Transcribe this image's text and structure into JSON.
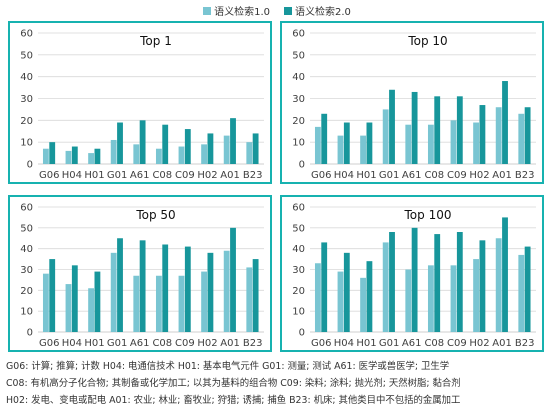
{
  "legend": {
    "series1": "语义检索1.0",
    "series2": "语义检索2.0"
  },
  "colors": {
    "series1": "#79c5d2",
    "series2": "#17969b",
    "panel_border": "#17b2b0",
    "grid": "#d9d9d9",
    "axis_text": "#404040"
  },
  "chart_data": [
    {
      "type": "bar",
      "title": "Top 1",
      "categories": [
        "G06",
        "H04",
        "H01",
        "G01",
        "A61",
        "C08",
        "C09",
        "H02",
        "A01",
        "B23"
      ],
      "ylim": [
        0,
        60
      ],
      "yticks": [
        0,
        10,
        20,
        30,
        40,
        50,
        60
      ],
      "grid": true,
      "series": [
        {
          "name": "语义检索1.0",
          "values": [
            7,
            6,
            5,
            11,
            9,
            7,
            8,
            9,
            13,
            10
          ]
        },
        {
          "name": "语义检索2.0",
          "values": [
            10,
            8,
            7,
            19,
            20,
            18,
            16,
            14,
            21,
            14
          ]
        }
      ]
    },
    {
      "type": "bar",
      "title": "Top 10",
      "categories": [
        "G06",
        "H04",
        "H01",
        "G01",
        "A61",
        "C08",
        "C09",
        "H02",
        "A01",
        "B23"
      ],
      "ylim": [
        0,
        60
      ],
      "yticks": [
        0,
        10,
        20,
        30,
        40,
        50,
        60
      ],
      "grid": true,
      "series": [
        {
          "name": "语义检索1.0",
          "values": [
            17,
            13,
            13,
            25,
            18,
            18,
            20,
            19,
            26,
            23
          ]
        },
        {
          "name": "语义检索2.0",
          "values": [
            23,
            19,
            19,
            34,
            33,
            31,
            31,
            27,
            38,
            26
          ]
        }
      ]
    },
    {
      "type": "bar",
      "title": "Top 50",
      "categories": [
        "G06",
        "H04",
        "H01",
        "G01",
        "A61",
        "C08",
        "C09",
        "H02",
        "A01",
        "B23"
      ],
      "ylim": [
        0,
        60
      ],
      "yticks": [
        0,
        10,
        20,
        30,
        40,
        50,
        60
      ],
      "grid": true,
      "series": [
        {
          "name": "语义检索1.0",
          "values": [
            28,
            23,
            21,
            38,
            27,
            27,
            27,
            29,
            39,
            31
          ]
        },
        {
          "name": "语义检索2.0",
          "values": [
            35,
            32,
            29,
            45,
            44,
            42,
            41,
            38,
            50,
            35
          ]
        }
      ]
    },
    {
      "type": "bar",
      "title": "Top 100",
      "categories": [
        "G06",
        "H04",
        "H01",
        "G01",
        "A61",
        "C08",
        "C09",
        "H02",
        "A01",
        "B23"
      ],
      "ylim": [
        0,
        60
      ],
      "yticks": [
        0,
        10,
        20,
        30,
        40,
        50,
        60
      ],
      "grid": true,
      "series": [
        {
          "name": "语义检索1.0",
          "values": [
            33,
            29,
            26,
            43,
            30,
            32,
            32,
            35,
            45,
            37
          ]
        },
        {
          "name": "语义检索2.0",
          "values": [
            43,
            38,
            34,
            48,
            50,
            47,
            48,
            44,
            55,
            41
          ]
        }
      ]
    }
  ],
  "footnotes": [
    "G06: 计算; 推算; 计数  H04: 电通信技术  H01: 基本电气元件  G01: 测量; 测试  A61: 医学或兽医学; 卫生学",
    "C08: 有机高分子化合物; 其制备或化学加工; 以其为基料的组合物  C09: 染料; 涂料; 抛光剂; 天然树脂; 黏合剂",
    "H02: 发电、变电或配电  A01: 农业; 林业; 畜牧业; 狩猎; 诱捕; 捕鱼  B23: 机床; 其他类目中不包括的金属加工"
  ]
}
